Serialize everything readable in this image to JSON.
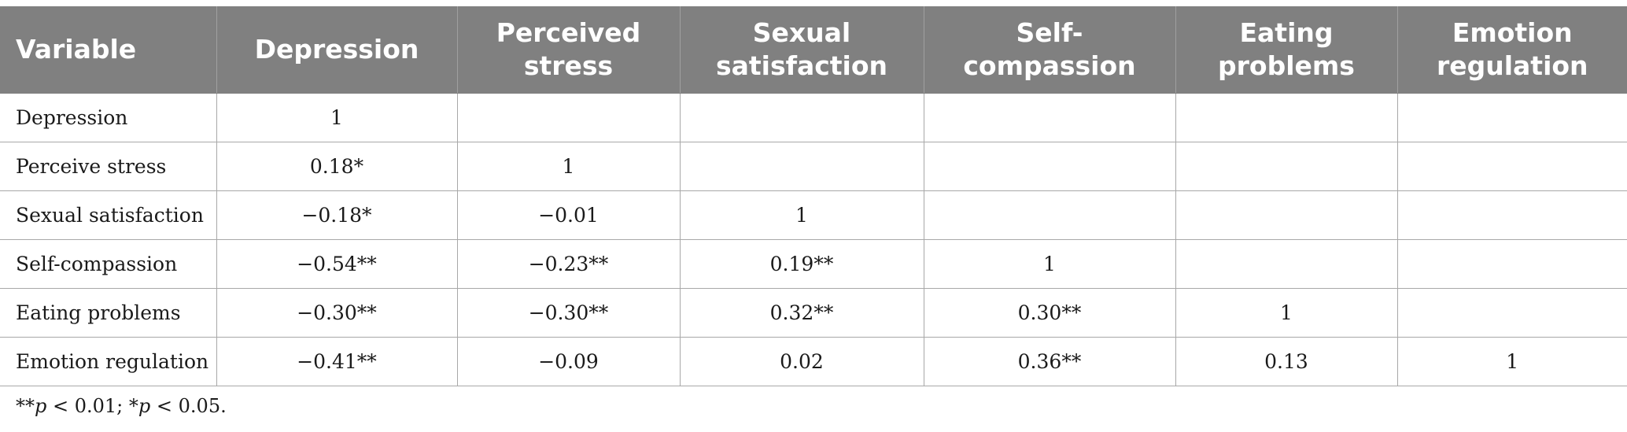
{
  "table": {
    "headers": [
      [
        "Variable"
      ],
      [
        "Depression"
      ],
      [
        "Perceived",
        "stress"
      ],
      [
        "Sexual",
        "satisfaction"
      ],
      [
        "Self-",
        "compassion"
      ],
      [
        "Eating",
        "problems"
      ],
      [
        "Emotion",
        "regulation"
      ]
    ],
    "rows": [
      [
        "Depression",
        "1",
        "",
        "",
        "",
        "",
        ""
      ],
      [
        "Perceive stress",
        "0.18*",
        "1",
        "",
        "",
        "",
        ""
      ],
      [
        "Sexual satisfaction",
        "−0.18*",
        "−0.01",
        "1",
        "",
        "",
        ""
      ],
      [
        "Self-compassion",
        "−0.54**",
        "−0.23**",
        "0.19**",
        "1",
        "",
        ""
      ],
      [
        "Eating problems",
        "−0.30**",
        "−0.30**",
        "0.32**",
        "0.30**",
        "1",
        ""
      ],
      [
        "Emotion regulation",
        "−0.41**",
        "−0.09",
        "0.02",
        "0.36**",
        "0.13",
        "1"
      ]
    ]
  },
  "footnote": {
    "stars2": "**",
    "p1": "p",
    "text1": " < 0.01; ",
    "stars1": "*",
    "p2": "p",
    "text2": " < 0.05."
  }
}
